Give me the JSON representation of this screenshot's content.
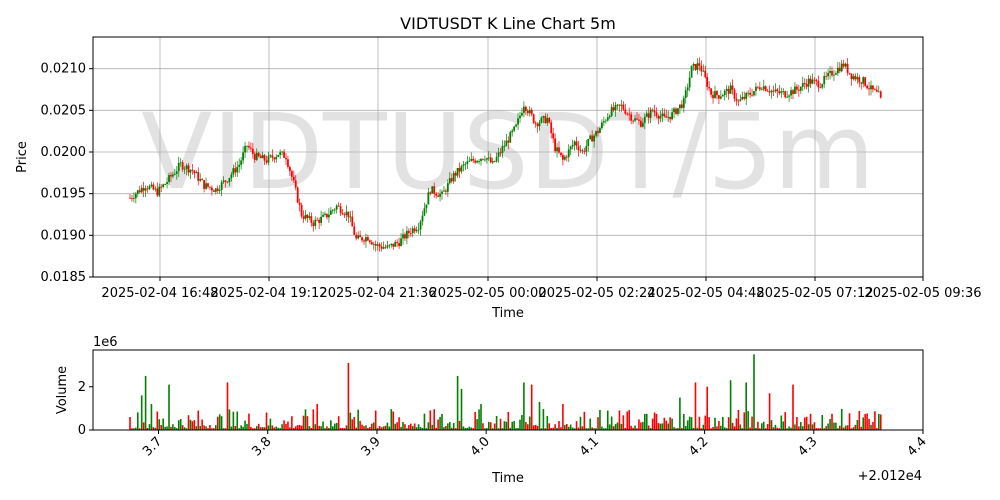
{
  "chart_data": [
    {
      "type": "candlestick",
      "title": "VIDTUSDT K Line Chart 5m",
      "xlabel": "Time",
      "ylabel": "Price",
      "watermark": "VIDTUSDT/5m",
      "ylim": [
        0.0185,
        0.02138
      ],
      "yticks": [
        "0.0185",
        "0.0190",
        "0.0195",
        "0.0200",
        "0.0205",
        "0.0210"
      ],
      "xticks": [
        "2025-02-04 16:48",
        "2025-02-04 19:12",
        "2025-02-04 21:36",
        "2025-02-05 00:00",
        "2025-02-05 02:24",
        "2025-02-05 04:48",
        "2025-02-05 07:12",
        "2025-02-05 09:36"
      ],
      "up_color": "#008000",
      "down_color": "#ff0000",
      "grid": true,
      "close_path": [
        [
          0,
          0.01945
        ],
        [
          8,
          0.0196
        ],
        [
          14,
          0.01952
        ],
        [
          18,
          0.01962
        ],
        [
          26,
          0.01985
        ],
        [
          32,
          0.01978
        ],
        [
          38,
          0.0196
        ],
        [
          44,
          0.01955
        ],
        [
          50,
          0.01968
        ],
        [
          56,
          0.01985
        ],
        [
          60,
          0.02008
        ],
        [
          64,
          0.01995
        ],
        [
          70,
          0.0199
        ],
        [
          76,
          0.01998
        ],
        [
          80,
          0.01995
        ],
        [
          84,
          0.01962
        ],
        [
          88,
          0.01925
        ],
        [
          94,
          0.01915
        ],
        [
          100,
          0.01922
        ],
        [
          106,
          0.01935
        ],
        [
          112,
          0.01925
        ],
        [
          116,
          0.01895
        ],
        [
          122,
          0.01898
        ],
        [
          126,
          0.01888
        ],
        [
          132,
          0.01885
        ],
        [
          138,
          0.01892
        ],
        [
          144,
          0.01906
        ],
        [
          148,
          0.01912
        ],
        [
          154,
          0.01955
        ],
        [
          160,
          0.01948
        ],
        [
          166,
          0.01972
        ],
        [
          172,
          0.01985
        ],
        [
          176,
          0.0199
        ],
        [
          182,
          0.01995
        ],
        [
          186,
          0.01985
        ],
        [
          192,
          0.02008
        ],
        [
          198,
          0.0203
        ],
        [
          202,
          0.02058
        ],
        [
          208,
          0.02035
        ],
        [
          214,
          0.0204
        ],
        [
          218,
          0.02005
        ],
        [
          222,
          0.0199
        ],
        [
          228,
          0.02012
        ],
        [
          232,
          0.02
        ],
        [
          236,
          0.02015
        ],
        [
          240,
          0.02025
        ],
        [
          246,
          0.02048
        ],
        [
          252,
          0.02055
        ],
        [
          258,
          0.0204
        ],
        [
          262,
          0.02035
        ],
        [
          268,
          0.0205
        ],
        [
          274,
          0.0204
        ],
        [
          278,
          0.02045
        ],
        [
          284,
          0.0206
        ],
        [
          288,
          0.021
        ],
        [
          292,
          0.02105
        ],
        [
          298,
          0.0207
        ],
        [
          302,
          0.02068
        ],
        [
          308,
          0.02075
        ],
        [
          312,
          0.0206
        ],
        [
          318,
          0.0207
        ],
        [
          324,
          0.0208
        ],
        [
          330,
          0.02072
        ],
        [
          336,
          0.0207
        ],
        [
          342,
          0.02075
        ],
        [
          348,
          0.02085
        ],
        [
          354,
          0.02082
        ],
        [
          360,
          0.02095
        ],
        [
          366,
          0.02105
        ],
        [
          370,
          0.02092
        ],
        [
          376,
          0.02085
        ],
        [
          380,
          0.02075
        ],
        [
          384,
          0.02068
        ],
        [
          385,
          0.02062
        ]
      ],
      "volume": {
        "ylabel": "Volume",
        "xlabel": "Time",
        "offset_label": "+2.012e4",
        "scale_label": "1e6",
        "ylim": [
          0,
          3.7
        ],
        "yticks": [
          "0",
          "2"
        ],
        "xlim": [
          3.64,
          4.4
        ],
        "xticks": [
          "3.7",
          "3.8",
          "3.9",
          "4.0",
          "4.1",
          "4.2",
          "4.3",
          "4.4"
        ],
        "spikes": [
          [
            6,
            1.6
          ],
          [
            8,
            2.5
          ],
          [
            11,
            1.2
          ],
          [
            20,
            2.1
          ],
          [
            50,
            2.2
          ],
          [
            96,
            1.2
          ],
          [
            112,
            3.1
          ],
          [
            126,
            0.9
          ],
          [
            168,
            2.5
          ],
          [
            170,
            1.9
          ],
          [
            180,
            1.2
          ],
          [
            202,
            2.2
          ],
          [
            206,
            2.1
          ],
          [
            210,
            1.3
          ],
          [
            222,
            1.2
          ],
          [
            282,
            1.5
          ],
          [
            290,
            2.2
          ],
          [
            296,
            2.0
          ],
          [
            308,
            2.3
          ],
          [
            316,
            2.2
          ],
          [
            320,
            3.5
          ],
          [
            328,
            1.7
          ],
          [
            340,
            2.1
          ]
        ]
      }
    }
  ]
}
